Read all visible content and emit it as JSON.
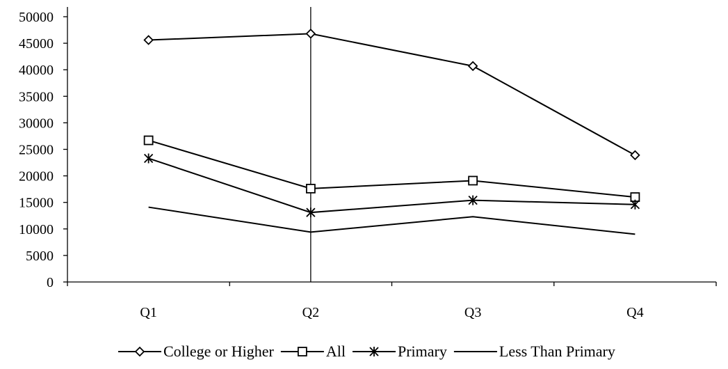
{
  "chart_data": {
    "type": "line",
    "categories": [
      "Q1",
      "Q2",
      "Q3",
      "Q4"
    ],
    "ylim": [
      0,
      50000
    ],
    "yticks": [
      0,
      5000,
      10000,
      15000,
      20000,
      25000,
      30000,
      35000,
      40000,
      45000,
      50000
    ],
    "ytick_labels": [
      "0",
      "5000",
      "10000",
      "15000",
      "20000",
      "25000",
      "30000",
      "35000",
      "40000",
      "45000",
      "50000"
    ],
    "grid": false,
    "legend_position": "bottom",
    "vertical_marker_category": "Q2",
    "series": [
      {
        "name": "College or Higher",
        "marker": "diamond",
        "values": [
          45600,
          46800,
          40700,
          23900
        ]
      },
      {
        "name": "All",
        "marker": "square",
        "values": [
          26700,
          17600,
          19100,
          16000
        ]
      },
      {
        "name": "Primary",
        "marker": "asterisk",
        "values": [
          23300,
          13100,
          15400,
          14600
        ]
      },
      {
        "name": "Less Than Primary",
        "marker": "none",
        "values": [
          14100,
          9400,
          12300,
          9000
        ]
      }
    ]
  }
}
